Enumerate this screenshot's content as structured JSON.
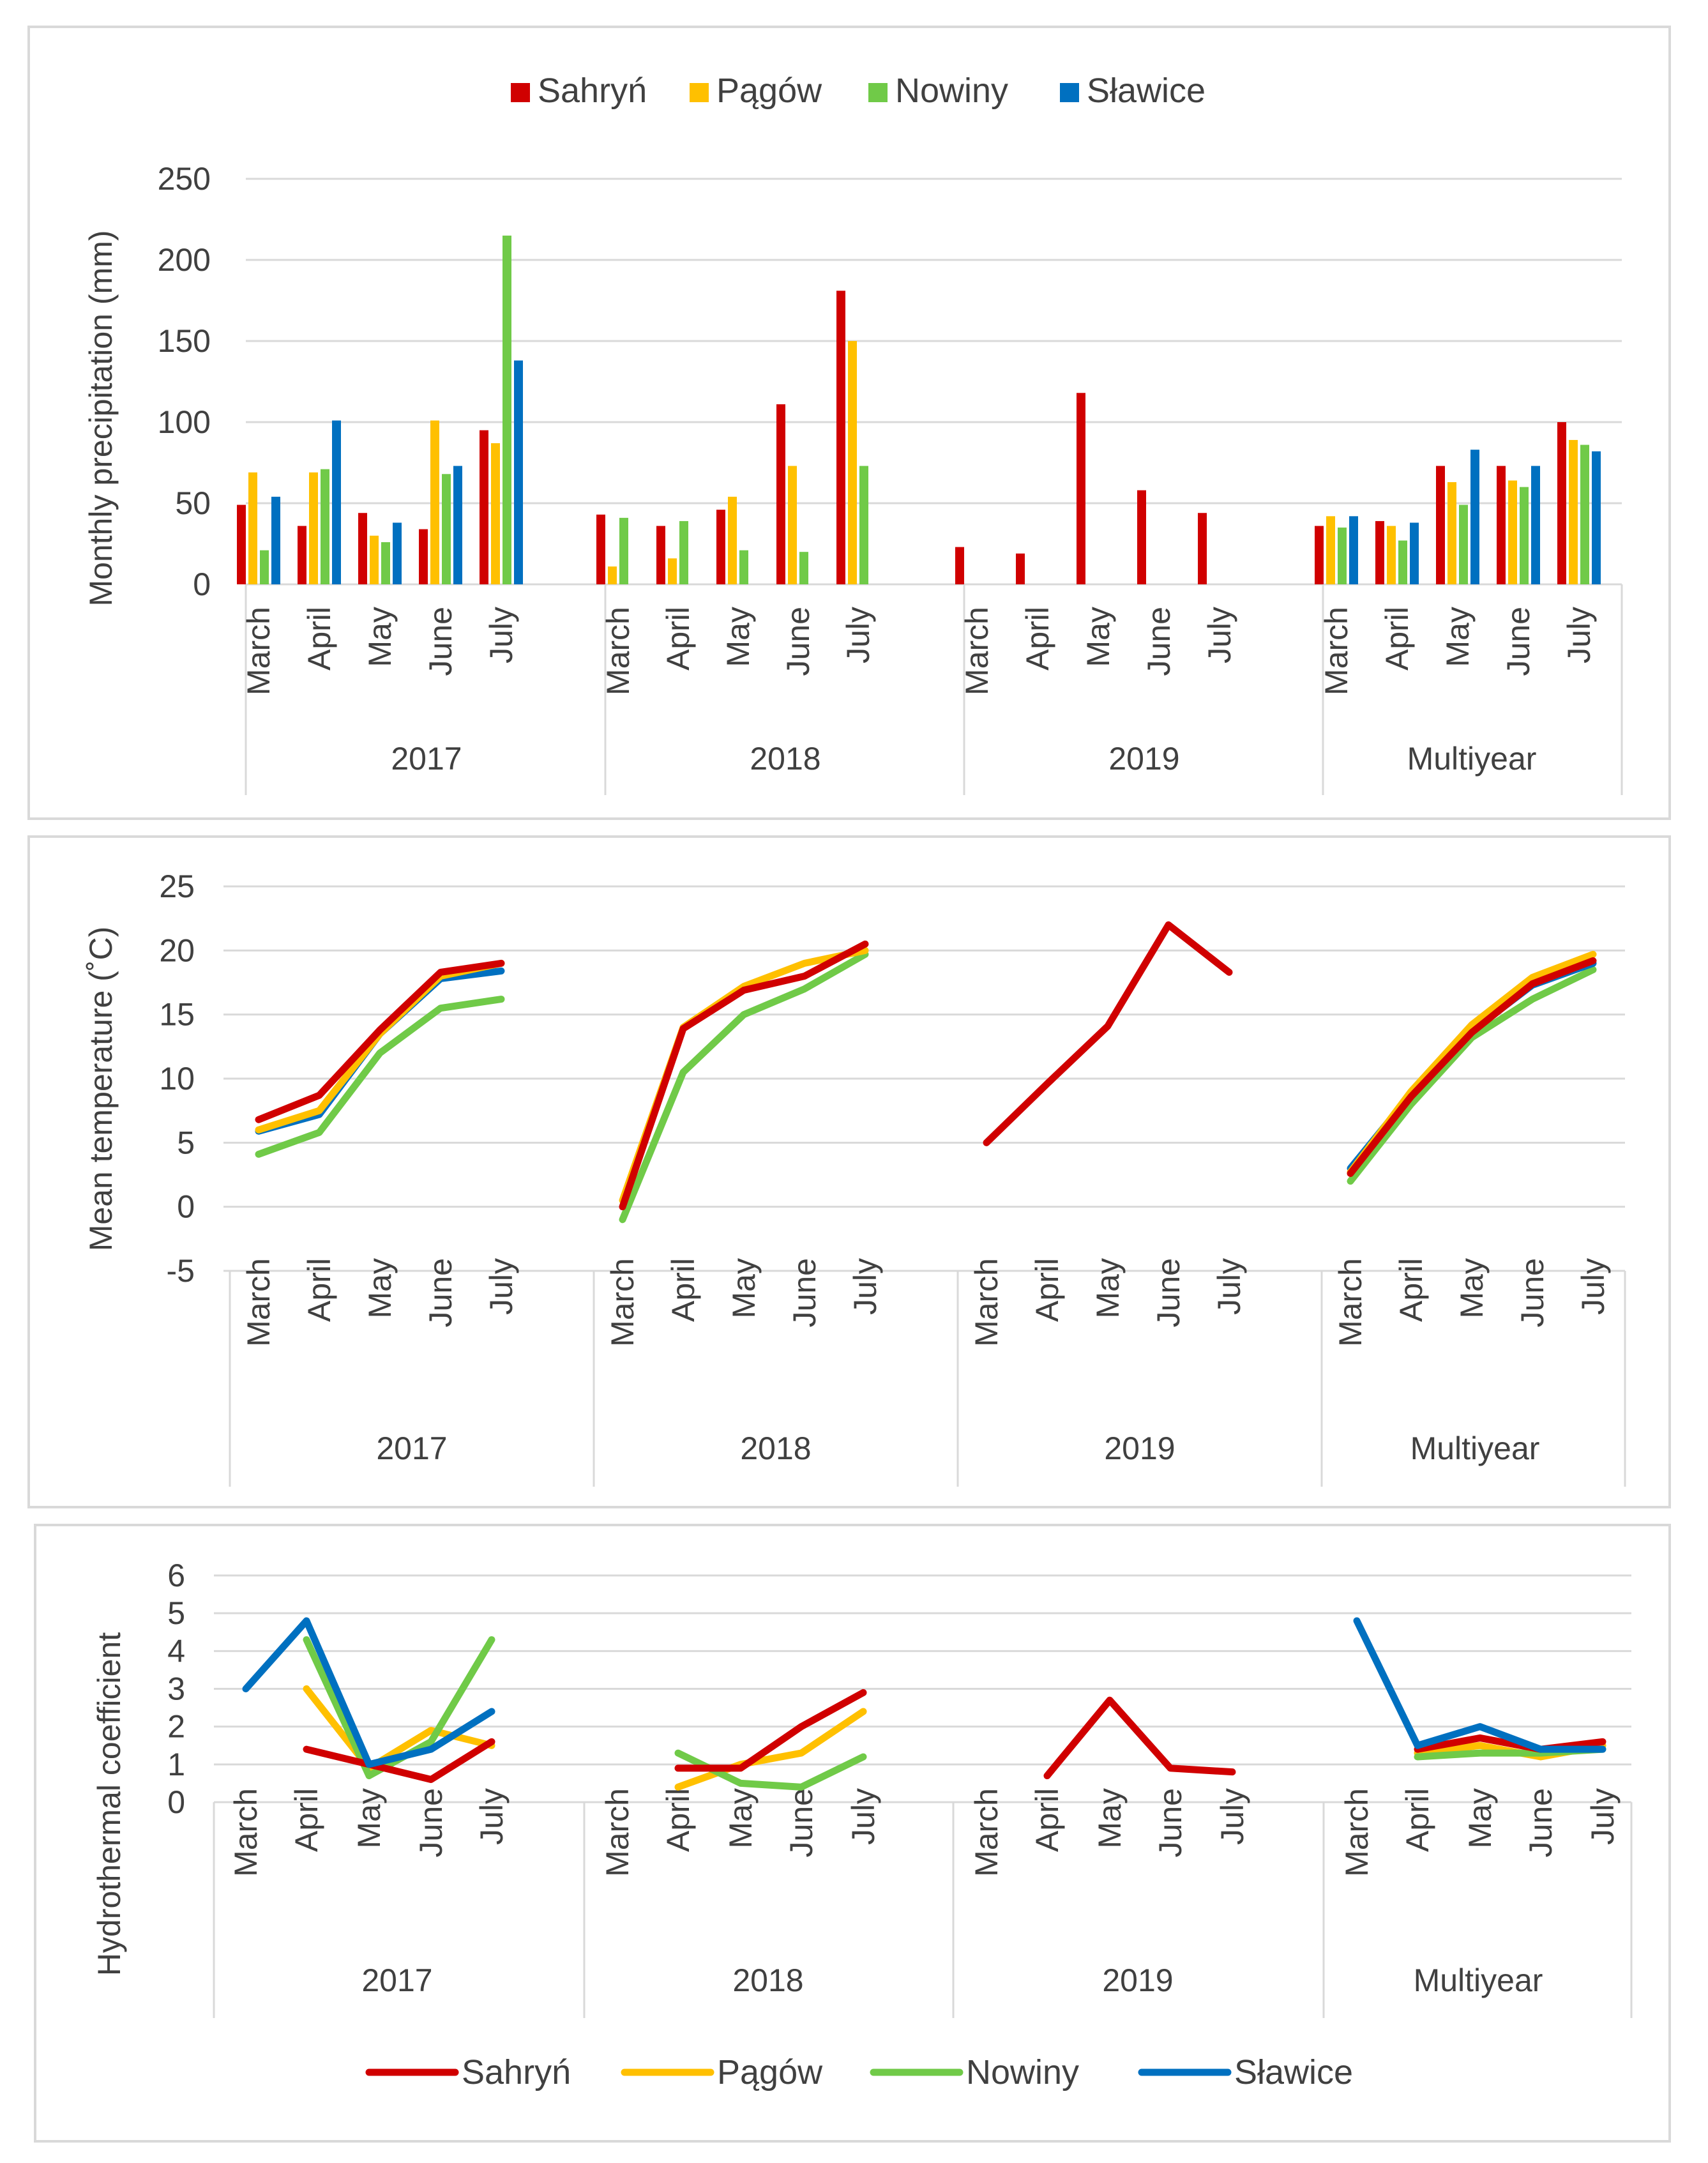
{
  "colors": {
    "Sahryń": "#d00000",
    "Pągów": "#ffc000",
    "Nowiny": "#70ca48",
    "Sławice": "#0070c0"
  },
  "chart_data": [
    {
      "type": "bar",
      "ylabel": "Monthly precipitation (mm)",
      "ylim": [
        0,
        250
      ],
      "yticks": [
        0,
        50,
        100,
        150,
        200,
        250
      ],
      "groups": [
        "2017",
        "2018",
        "2019",
        "Multiyear"
      ],
      "months": [
        "March",
        "April",
        "May",
        "June",
        "July"
      ],
      "legend": {
        "placement": "top-center",
        "entries": [
          "Sahryń",
          "Pągów",
          "Nowiny",
          "Sławice"
        ]
      },
      "series": [
        {
          "name": "Sahryń",
          "values": [
            [
              49,
              36,
              44,
              34,
              95
            ],
            [
              43,
              36,
              46,
              111,
              181
            ],
            [
              23,
              19,
              118,
              58,
              44
            ],
            [
              36,
              39,
              73,
              73,
              100
            ]
          ]
        },
        {
          "name": "Pągów",
          "values": [
            [
              69,
              69,
              30,
              101,
              87
            ],
            [
              11,
              16,
              54,
              73,
              150
            ],
            [
              null,
              null,
              null,
              null,
              null
            ],
            [
              42,
              36,
              63,
              64,
              89
            ]
          ]
        },
        {
          "name": "Nowiny",
          "values": [
            [
              21,
              71,
              26,
              68,
              215
            ],
            [
              41,
              39,
              21,
              20,
              73
            ],
            [
              null,
              null,
              null,
              null,
              null
            ],
            [
              35,
              27,
              49,
              60,
              86
            ]
          ]
        },
        {
          "name": "Sławice",
          "values": [
            [
              54,
              101,
              38,
              73,
              138
            ],
            [
              null,
              null,
              null,
              null,
              null
            ],
            [
              null,
              null,
              null,
              null,
              null
            ],
            [
              42,
              38,
              83,
              73,
              82
            ]
          ]
        }
      ]
    },
    {
      "type": "line",
      "ylabel": "Mean temperature (˚C)",
      "ylim": [
        -5,
        25
      ],
      "yticks": [
        -5,
        0,
        5,
        10,
        15,
        20,
        25
      ],
      "groups": [
        "2017",
        "2018",
        "2019",
        "Multiyear"
      ],
      "months": [
        "March",
        "April",
        "May",
        "June",
        "July"
      ],
      "series": [
        {
          "name": "Sahryń",
          "values": [
            [
              6.8,
              8.7,
              13.8,
              18.3,
              19.0
            ],
            [
              0.0,
              13.9,
              16.9,
              18.0,
              20.5
            ],
            [
              5.0,
              9.6,
              14.1,
              22.0,
              18.3
            ],
            [
              2.6,
              8.6,
              13.6,
              17.4,
              19.2
            ]
          ]
        },
        {
          "name": "Pągów",
          "values": [
            [
              6.0,
              7.5,
              13.5,
              18.0,
              19.0
            ],
            [
              0.5,
              14.0,
              17.2,
              19.0,
              20.0
            ],
            [
              null,
              null,
              null,
              null,
              null
            ],
            [
              2.7,
              9.0,
              14.2,
              17.9,
              19.7
            ]
          ]
        },
        {
          "name": "Nowiny",
          "values": [
            [
              4.1,
              5.8,
              12.0,
              15.5,
              16.2
            ],
            [
              -1.0,
              10.5,
              15.0,
              17.0,
              19.7
            ],
            [
              null,
              null,
              null,
              null,
              null
            ],
            [
              2.0,
              8.0,
              13.2,
              16.2,
              18.5
            ]
          ]
        },
        {
          "name": "Sławice",
          "values": [
            [
              5.9,
              7.2,
              13.5,
              17.8,
              18.4
            ],
            [
              null,
              null,
              null,
              null,
              null
            ],
            [
              null,
              null,
              null,
              null,
              null
            ],
            [
              3.0,
              8.8,
              13.7,
              17.3,
              19.0
            ]
          ]
        }
      ]
    },
    {
      "type": "line",
      "ylabel": "Hydrothermal coefficient",
      "ylim": [
        0,
        6
      ],
      "yticks": [
        0,
        1,
        2,
        3,
        4,
        5,
        6
      ],
      "groups": [
        "2017",
        "2018",
        "2019",
        "Multiyear"
      ],
      "months": [
        "March",
        "April",
        "May",
        "June",
        "July"
      ],
      "legend": {
        "placement": "bottom-center",
        "entries": [
          "Sahryń",
          "Pągów",
          "Nowiny",
          "Sławice"
        ]
      },
      "series": [
        {
          "name": "Sahryń",
          "values": [
            [
              null,
              1.4,
              1.0,
              0.6,
              1.6
            ],
            [
              null,
              0.9,
              0.9,
              2.0,
              2.9
            ],
            [
              null,
              0.7,
              2.7,
              0.9,
              0.8
            ],
            [
              null,
              1.4,
              1.7,
              1.4,
              1.6
            ]
          ]
        },
        {
          "name": "Pągów",
          "values": [
            [
              null,
              3.0,
              0.9,
              1.9,
              1.5
            ],
            [
              null,
              0.4,
              1.0,
              1.3,
              2.4
            ],
            [
              null,
              null,
              null,
              null,
              null
            ],
            [
              null,
              1.3,
              1.5,
              1.2,
              1.5
            ]
          ]
        },
        {
          "name": "Nowiny",
          "values": [
            [
              null,
              4.3,
              0.7,
              1.6,
              4.3
            ],
            [
              null,
              1.3,
              0.5,
              0.4,
              1.2
            ],
            [
              null,
              null,
              null,
              null,
              null
            ],
            [
              null,
              1.2,
              1.3,
              1.3,
              1.4
            ]
          ]
        },
        {
          "name": "Sławice",
          "values": [
            [
              3.0,
              4.8,
              1.0,
              1.4,
              2.4
            ],
            [
              null,
              null,
              null,
              null,
              null
            ],
            [
              null,
              null,
              null,
              null,
              null
            ],
            [
              4.8,
              1.5,
              2.0,
              1.4,
              1.4
            ]
          ]
        }
      ]
    }
  ]
}
